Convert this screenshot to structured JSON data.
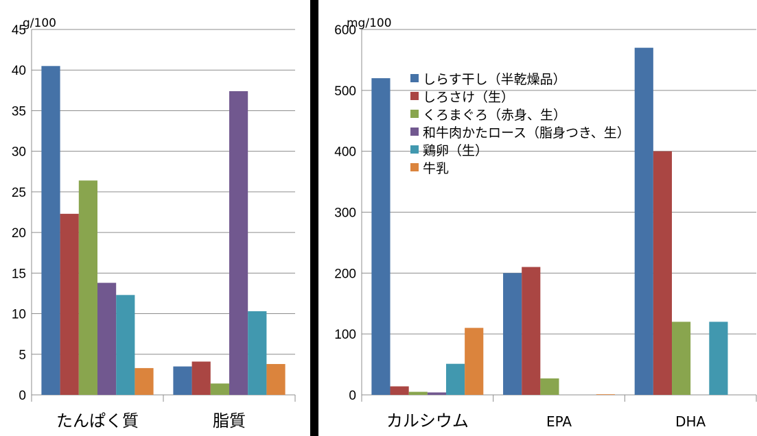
{
  "chart_data": [
    {
      "type": "bar",
      "unit_label": "g/100",
      "categories": [
        "たんぱく質",
        "脂質"
      ],
      "ylim": [
        0,
        45
      ],
      "yticks": [
        0,
        5,
        10,
        15,
        20,
        25,
        30,
        35,
        40,
        45
      ],
      "grid": true,
      "series": [
        {
          "name": "しらす干し（半乾燥品）",
          "values": [
            40.5,
            3.5
          ]
        },
        {
          "name": "しろさけ（生）",
          "values": [
            22.3,
            4.1
          ]
        },
        {
          "name": "くろまぐろ（赤身、生）",
          "values": [
            26.4,
            1.4
          ]
        },
        {
          "name": "和牛肉かたロース（脂身つき、生）",
          "values": [
            13.8,
            37.4
          ]
        },
        {
          "name": "鶏卵（生）",
          "values": [
            12.3,
            10.3
          ]
        },
        {
          "name": "牛乳",
          "values": [
            3.3,
            3.8
          ]
        }
      ]
    },
    {
      "type": "bar",
      "unit_label": "mg/100",
      "categories": [
        "カルシウム",
        "EPA",
        "DHA"
      ],
      "ylim": [
        0,
        600
      ],
      "yticks": [
        0,
        100,
        200,
        300,
        400,
        500,
        600
      ],
      "grid": true,
      "legend_position": "top-left",
      "series": [
        {
          "name": "しらす干し（半乾燥品）",
          "values": [
            520,
            200,
            570
          ]
        },
        {
          "name": "しろさけ（生）",
          "values": [
            14,
            210,
            400
          ]
        },
        {
          "name": "くろまぐろ（赤身、生）",
          "values": [
            5,
            27,
            120
          ]
        },
        {
          "name": "和牛肉かたロース（脂身つき、生）",
          "values": [
            4,
            0,
            0
          ]
        },
        {
          "name": "鶏卵（生）",
          "values": [
            51,
            0,
            120
          ]
        },
        {
          "name": "牛乳",
          "values": [
            110,
            1,
            0
          ]
        }
      ]
    }
  ],
  "colors": [
    "#4572a7",
    "#aa4643",
    "#89a54e",
    "#71588f",
    "#4198af",
    "#db843d"
  ]
}
